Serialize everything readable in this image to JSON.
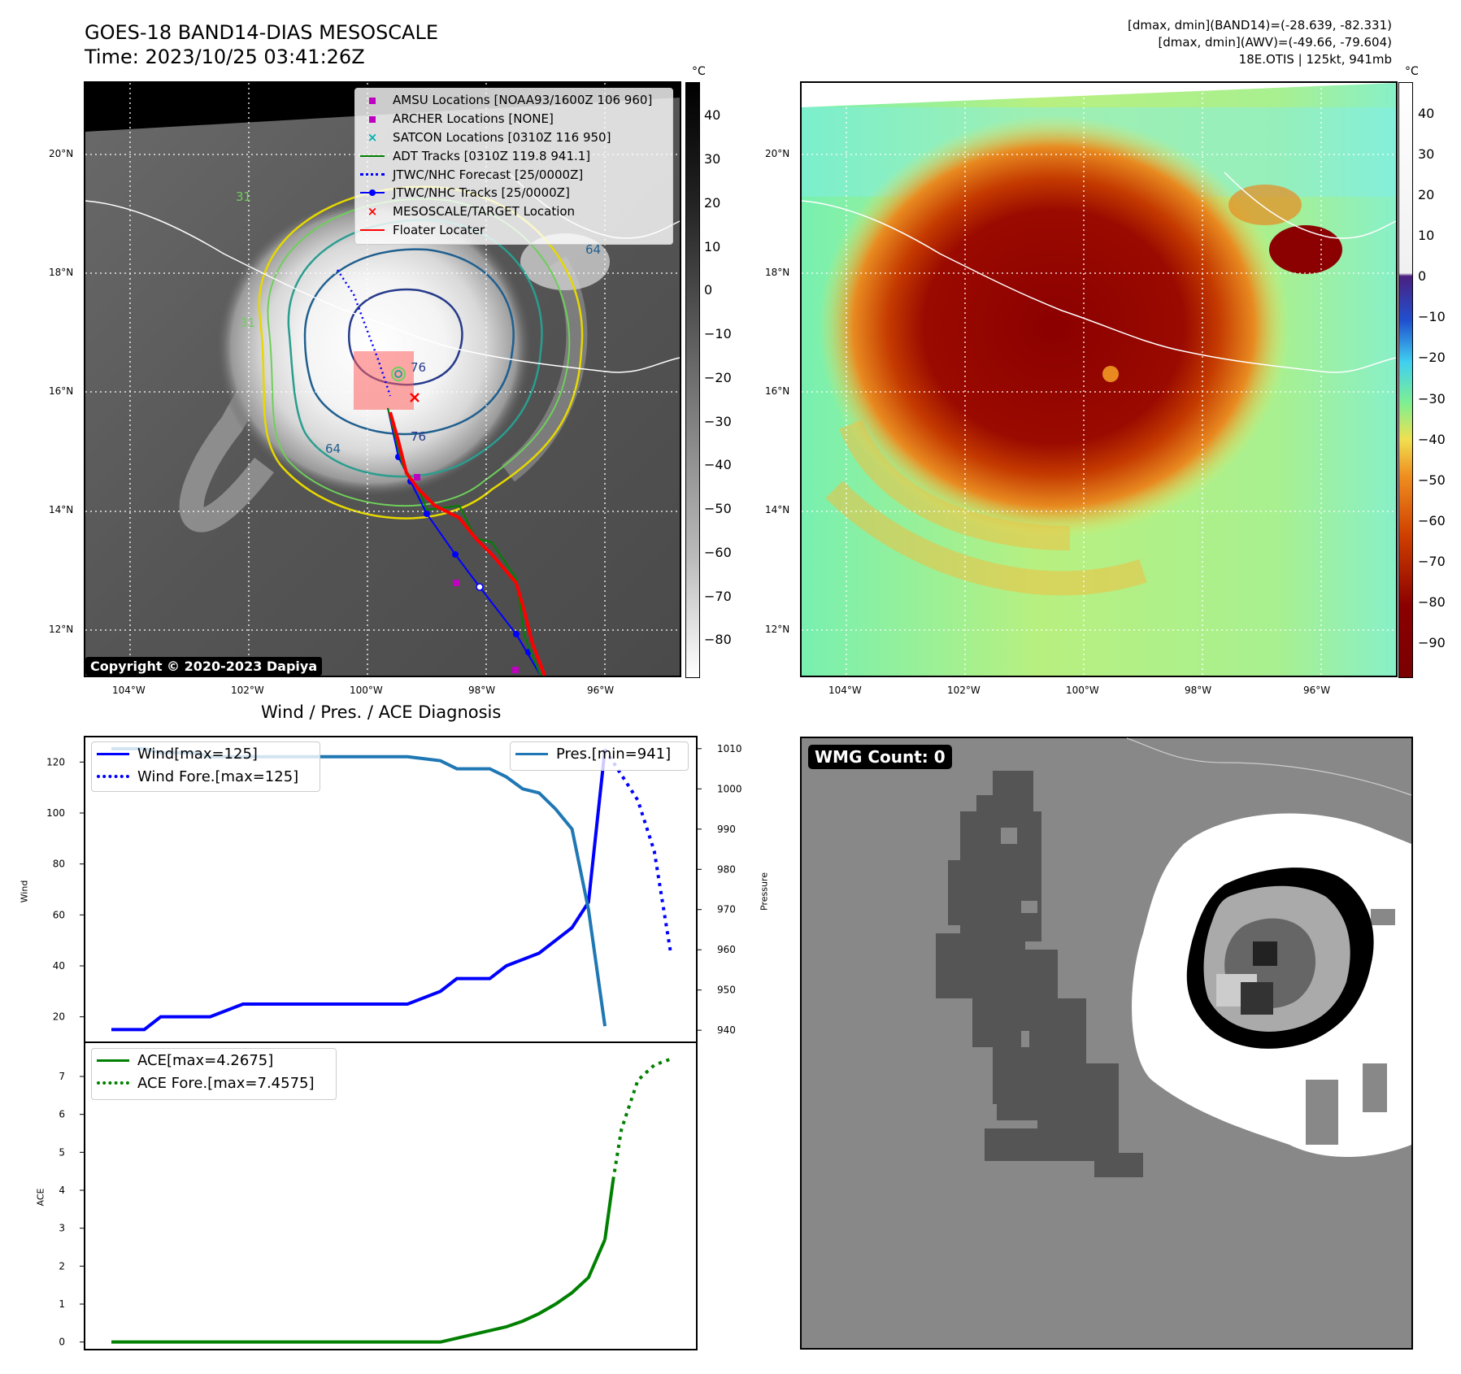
{
  "header": {
    "title_line1": "GOES-18 BAND14-DIAS MESOSCALE",
    "title_line2": "Time: 2023/10/25 03:41:26Z",
    "info_line1": "[dmax, dmin](BAND14)=(-28.639, -82.331)",
    "info_line2": "[dmax, dmin](AWV)=(-49.66, -79.604)",
    "info_line3": "18E.OTIS | 125kt, 941mb"
  },
  "maps": {
    "lat_labels": [
      "20°N",
      "18°N",
      "16°N",
      "14°N",
      "12°N"
    ],
    "lon_labels": [
      "104°W",
      "102°W",
      "100°W",
      "98°W",
      "96°W"
    ],
    "copyright": "Copyright © 2020-2023 Dapiya",
    "contour_labels": [
      "76",
      "76",
      "64",
      "64",
      "31",
      "31"
    ],
    "colors": {
      "ir_low": "#ffffff",
      "ir_high": "#111111",
      "track": "#0000ff",
      "adt": "#008000",
      "floater": "#ff0000",
      "amsu": "#c000c0",
      "satcon": "#00c0c0"
    }
  },
  "legend_map": [
    {
      "label": "AMSU Locations [NOAA93/1600Z 106 960]",
      "symbol": "square",
      "color": "#c000c0"
    },
    {
      "label": "ARCHER Locations [NONE]",
      "symbol": "square",
      "color": "#c000c0"
    },
    {
      "label": "SATCON Locations [0310Z 116 950]",
      "symbol": "x",
      "color": "#00b0b0"
    },
    {
      "label": "ADT Tracks [0310Z 119.8 941.1]",
      "symbol": "line",
      "color": "#008000"
    },
    {
      "label": "JTWC/NHC Forecast [25/0000Z]",
      "symbol": "dotted",
      "color": "#0000ff"
    },
    {
      "label": "JTWC/NHC Tracks [25/0000Z]",
      "symbol": "line-dot",
      "color": "#0000ff"
    },
    {
      "label": "MESOSCALE/TARGET Location",
      "symbol": "x",
      "color": "#ff0000"
    },
    {
      "label": "Floater Locater",
      "symbol": "line",
      "color": "#ff0000"
    }
  ],
  "colorbar_left": {
    "unit": "°C",
    "ticks": [
      "40",
      "30",
      "20",
      "10",
      "0",
      "−10",
      "−20",
      "−30",
      "−40",
      "−50",
      "−60",
      "−70",
      "−80"
    ]
  },
  "colorbar_right": {
    "unit": "°C",
    "ticks": [
      "40",
      "30",
      "20",
      "10",
      "0",
      "−10",
      "−20",
      "−30",
      "−40",
      "−50",
      "−60",
      "−70",
      "−80",
      "−90"
    ]
  },
  "wmg": {
    "label": "WMG Count: 0"
  },
  "chart_data": [
    {
      "type": "line",
      "title": "Wind / Pres. / ACE Diagnosis",
      "ylabel": "Wind",
      "ylabel_right": "Pressure",
      "ylim": [
        10,
        130
      ],
      "ylim_right": [
        937,
        1013
      ],
      "yticks": [
        "20",
        "40",
        "60",
        "80",
        "100",
        "120"
      ],
      "yticks_right": [
        "940",
        "950",
        "960",
        "970",
        "980",
        "990",
        "1000",
        "1010"
      ],
      "series": [
        {
          "name": "Wind[max=125]",
          "color": "#0000ff",
          "style": "solid",
          "x": [
            0,
            2,
            3,
            5,
            6,
            8,
            9,
            11,
            12,
            14,
            15,
            17,
            18,
            20,
            21,
            23,
            24,
            26,
            27,
            28,
            29,
            30
          ],
          "values": [
            15,
            15,
            20,
            20,
            20,
            25,
            25,
            25,
            25,
            25,
            25,
            25,
            25,
            30,
            35,
            35,
            40,
            45,
            50,
            55,
            65,
            125
          ]
        },
        {
          "name": "Wind Fore.[max=125]",
          "color": "#0000ff",
          "style": "dotted",
          "x": [
            30,
            31,
            32,
            33,
            34
          ],
          "values": [
            125,
            115,
            105,
            85,
            45
          ]
        },
        {
          "name": "Pres.[min=941]",
          "color": "#1f77b4",
          "style": "solid",
          "axis": "right",
          "x": [
            0,
            2,
            3,
            5,
            6,
            8,
            9,
            11,
            12,
            14,
            15,
            17,
            18,
            20,
            21,
            23,
            24,
            25,
            26,
            27,
            28,
            29,
            30
          ],
          "values": [
            1010,
            1010,
            1009,
            1009,
            1008,
            1008,
            1008,
            1008,
            1008,
            1008,
            1008,
            1008,
            1008,
            1007,
            1005,
            1005,
            1003,
            1000,
            999,
            995,
            990,
            970,
            941
          ]
        }
      ]
    },
    {
      "type": "line",
      "ylabel": "ACE",
      "ylim": [
        -0.2,
        7.9
      ],
      "yticks": [
        "0",
        "1",
        "2",
        "3",
        "4",
        "5",
        "6",
        "7"
      ],
      "series": [
        {
          "name": "ACE[max=4.2675]",
          "color": "#008000",
          "style": "solid",
          "x": [
            0,
            5,
            10,
            15,
            20,
            22,
            24,
            25,
            26,
            27,
            28,
            29,
            30
          ],
          "values": [
            0,
            0,
            0,
            0,
            0,
            0.2,
            0.4,
            0.55,
            0.75,
            1.0,
            1.3,
            1.7,
            2.7
          ]
        },
        {
          "name": "ACE[max=4.2675]",
          "color": "#008000",
          "style": "solid",
          "x": [
            30,
            30.5
          ],
          "values": [
            2.7,
            4.27
          ]
        },
        {
          "name": "ACE Fore.[max=7.4575]",
          "color": "#008000",
          "style": "dotted",
          "x": [
            30.5,
            31,
            32,
            33,
            34
          ],
          "values": [
            4.27,
            5.6,
            6.9,
            7.3,
            7.46
          ]
        }
      ]
    }
  ]
}
